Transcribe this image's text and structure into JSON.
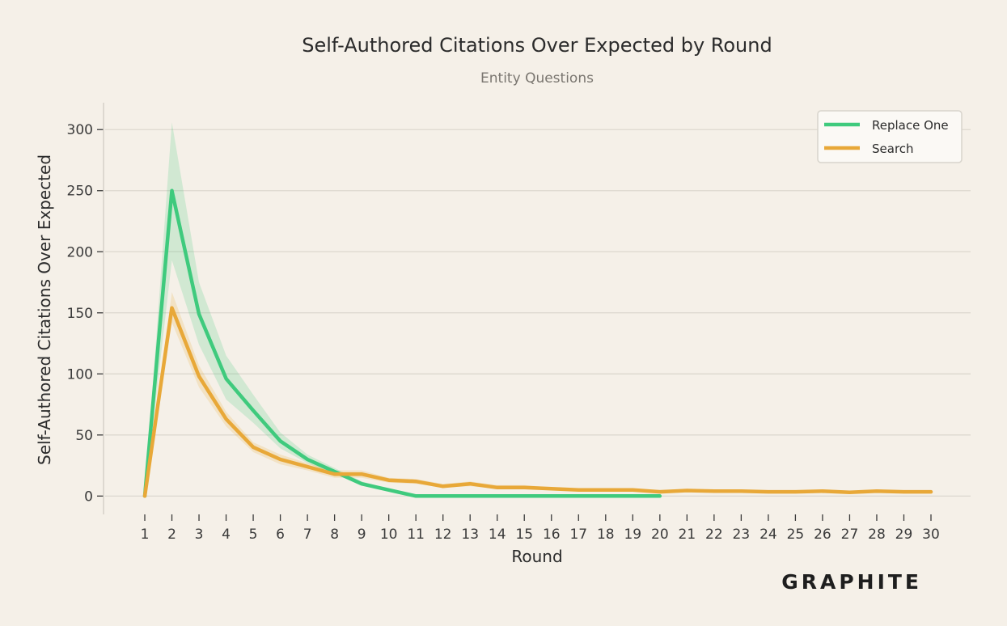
{
  "chart_data": {
    "type": "line",
    "title": "Self-Authored Citations Over Expected by Round",
    "subtitle": "Entity Questions",
    "xlabel": "Round",
    "ylabel": "Self-Authored Citations Over Expected",
    "x": [
      1,
      2,
      3,
      4,
      5,
      6,
      7,
      8,
      9,
      10,
      11,
      12,
      13,
      14,
      15,
      16,
      17,
      18,
      19,
      20,
      21,
      22,
      23,
      24,
      25,
      26,
      27,
      28,
      29,
      30
    ],
    "xlim": [
      1,
      30
    ],
    "ylim": [
      -15,
      322
    ],
    "yticks": [
      0,
      50,
      100,
      150,
      200,
      250,
      300
    ],
    "grid": "horizontal",
    "legend_position": "top-right",
    "series": [
      {
        "name": "Replace One",
        "color": "#3fca7d",
        "x": [
          1,
          2,
          3,
          4,
          5,
          6,
          7,
          8,
          9,
          10,
          11,
          12,
          13,
          14,
          15,
          16,
          17,
          18,
          19,
          20
        ],
        "values": [
          0,
          250,
          149,
          96,
          70,
          45,
          30,
          20,
          10,
          5,
          0,
          0,
          0,
          0,
          0,
          0,
          0,
          0,
          0,
          0
        ],
        "lower": [
          0,
          193,
          124,
          79,
          60,
          39,
          27,
          18,
          9,
          4,
          0,
          0,
          0,
          0,
          0,
          0,
          0,
          0,
          0,
          0
        ],
        "upper": [
          0,
          306,
          175,
          115,
          83,
          52,
          34,
          23,
          12,
          6,
          0,
          0,
          0,
          0,
          0,
          0,
          0,
          0,
          0,
          0
        ]
      },
      {
        "name": "Search",
        "color": "#e8a838",
        "x": [
          1,
          2,
          3,
          4,
          5,
          6,
          7,
          8,
          9,
          10,
          11,
          12,
          13,
          14,
          15,
          16,
          17,
          18,
          19,
          20,
          21,
          22,
          23,
          24,
          25,
          26,
          27,
          28,
          29,
          30
        ],
        "values": [
          0,
          154,
          98,
          63,
          40,
          30,
          24,
          18,
          18,
          13,
          12,
          8,
          10,
          7,
          7,
          6,
          5,
          5,
          5,
          3.5,
          4.5,
          4,
          4,
          3.5,
          3.5,
          4,
          3,
          4,
          3.5,
          3.5
        ],
        "lower": [
          0,
          142,
          89,
          57,
          36,
          26,
          21,
          15,
          15,
          11,
          10,
          7,
          8,
          6,
          6,
          5,
          4,
          4,
          4,
          3,
          3.5,
          3,
          3,
          3,
          3,
          3,
          2.5,
          3,
          3,
          3
        ],
        "upper": [
          0,
          167,
          107,
          69,
          44,
          34,
          27,
          21,
          21,
          15,
          14,
          10,
          12,
          9,
          9,
          7,
          6,
          6,
          6,
          5,
          5.5,
          5,
          5,
          4.5,
          4.5,
          5,
          4,
          5,
          4.5,
          4.5
        ]
      }
    ]
  },
  "branding": {
    "logo_text": "GRAPHITE"
  }
}
